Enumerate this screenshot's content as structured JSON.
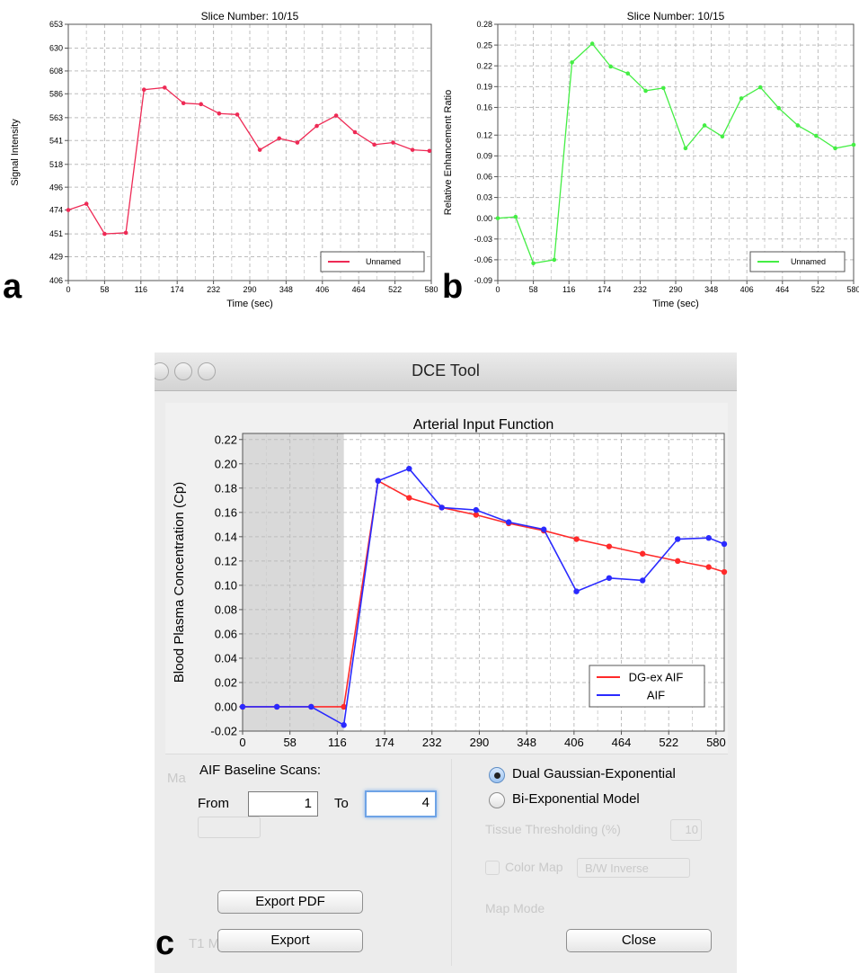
{
  "panel_labels": {
    "a": "a",
    "b": "b",
    "c": "c"
  },
  "chart_data": [
    {
      "type": "line",
      "title": "Slice Number: 10/15",
      "xlabel": "Time (sec)",
      "ylabel": "Signal Intensity",
      "xlim": [
        0,
        580
      ],
      "ylim": [
        406,
        653
      ],
      "x_ticks": [
        "0",
        "58",
        "116",
        "174",
        "232",
        "290",
        "348",
        "406",
        "464",
        "522",
        "580"
      ],
      "y_ticks": [
        "406",
        "429",
        "451",
        "474",
        "496",
        "518",
        "541",
        "563",
        "586",
        "608",
        "630",
        "653"
      ],
      "color": "#ee2a55",
      "legend": {
        "labels": [
          "Unnamed"
        ],
        "position": "bottom-right"
      },
      "grid": true,
      "series": [
        {
          "name": "Unnamed",
          "x": [
            0,
            29,
            58,
            92,
            121,
            154,
            184,
            212,
            241,
            270,
            306,
            337,
            366,
            397,
            428,
            458,
            489,
            519,
            550,
            577
          ],
          "y": [
            474,
            480,
            451,
            452,
            590,
            592,
            577,
            576,
            567,
            566,
            532,
            543,
            539,
            555,
            565,
            549,
            537,
            539,
            532,
            531
          ]
        }
      ]
    },
    {
      "type": "line",
      "title": "Slice Number: 10/15",
      "xlabel": "Time (sec)",
      "ylabel": "Relative Enhancement Ratio",
      "xlim": [
        0,
        580
      ],
      "ylim": [
        -0.09,
        0.28
      ],
      "x_ticks": [
        "0",
        "58",
        "116",
        "174",
        "232",
        "290",
        "348",
        "406",
        "464",
        "522",
        "580"
      ],
      "y_ticks": [
        "-0.09",
        "-0.06",
        "-0.03",
        "0.00",
        "0.03",
        "0.06",
        "0.09",
        "0.12",
        "0.16",
        "0.19",
        "0.22",
        "0.25",
        "0.28"
      ],
      "color": "#44ee44",
      "legend": {
        "labels": [
          "Unnamed"
        ],
        "position": "bottom-right"
      },
      "grid": true,
      "series": [
        {
          "name": "Unnamed",
          "x": [
            0,
            29,
            58,
            92,
            121,
            154,
            184,
            212,
            241,
            270,
            306,
            337,
            366,
            397,
            428,
            458,
            489,
            519,
            550,
            580
          ],
          "y": [
            0.0,
            0.002,
            -0.065,
            -0.06,
            0.225,
            0.252,
            0.219,
            0.209,
            0.184,
            0.188,
            0.101,
            0.134,
            0.118,
            0.173,
            0.189,
            0.159,
            0.134,
            0.119,
            0.101,
            0.106
          ]
        }
      ]
    },
    {
      "type": "line",
      "title": "Arterial Input Function",
      "xlabel": "Time (sec)",
      "ylabel": "Blood Plasma Concentration (Cp)",
      "xlim": [
        0,
        590
      ],
      "ylim": [
        -0.02,
        0.225
      ],
      "x_ticks": [
        "0",
        "58",
        "116",
        "174",
        "232",
        "290",
        "348",
        "406",
        "464",
        "522",
        "580"
      ],
      "y_ticks": [
        "-0.02",
        "0.00",
        "0.02",
        "0.04",
        "0.06",
        "0.08",
        "0.10",
        "0.12",
        "0.14",
        "0.16",
        "0.18",
        "0.20",
        "0.22"
      ],
      "baseline_region": [
        0,
        124
      ],
      "legend": {
        "labels": [
          "DG-ex AIF",
          "AIF"
        ],
        "position": "bottom-right"
      },
      "grid": true,
      "series": [
        {
          "name": "DG-ex AIF",
          "color": "#ff2a2a",
          "x": [
            0,
            42,
            84,
            124,
            166,
            204,
            244,
            286,
            326,
            369,
            409,
            449,
            490,
            533,
            571,
            590
          ],
          "y": [
            0,
            0,
            0,
            0,
            0.186,
            0.172,
            0.164,
            0.158,
            0.151,
            0.145,
            0.138,
            0.132,
            0.126,
            0.12,
            0.115,
            0.111
          ]
        },
        {
          "name": "AIF",
          "color": "#2a2aff",
          "x": [
            0,
            42,
            84,
            124,
            166,
            204,
            244,
            286,
            326,
            369,
            409,
            449,
            490,
            533,
            571,
            590
          ],
          "y": [
            0,
            0,
            0,
            -0.015,
            0.186,
            0.196,
            0.164,
            0.162,
            0.152,
            0.146,
            0.095,
            0.106,
            0.104,
            0.138,
            0.139,
            0.134
          ]
        }
      ]
    }
  ],
  "window": {
    "title": "DCE Tool",
    "aif_baseline_label": "AIF Baseline Scans:",
    "from_label": "From",
    "from_value": "1",
    "to_label": "To",
    "to_value": "4",
    "radio_options": [
      "Dual Gaussian-Exponential",
      "Bi-Exponential Model"
    ],
    "selected_radio": 0,
    "export_pdf_label": "Export PDF",
    "export_label": "Export",
    "close_label": "Close",
    "ghost_labels": {
      "map_mode": "Map Mode",
      "tissue_thresholding": "Tissue Thresholding (%)",
      "tissue_value": "10",
      "color_map": "Color Map",
      "color_map_value": "B/W Inverse",
      "t1_map": "T1 M"
    }
  }
}
